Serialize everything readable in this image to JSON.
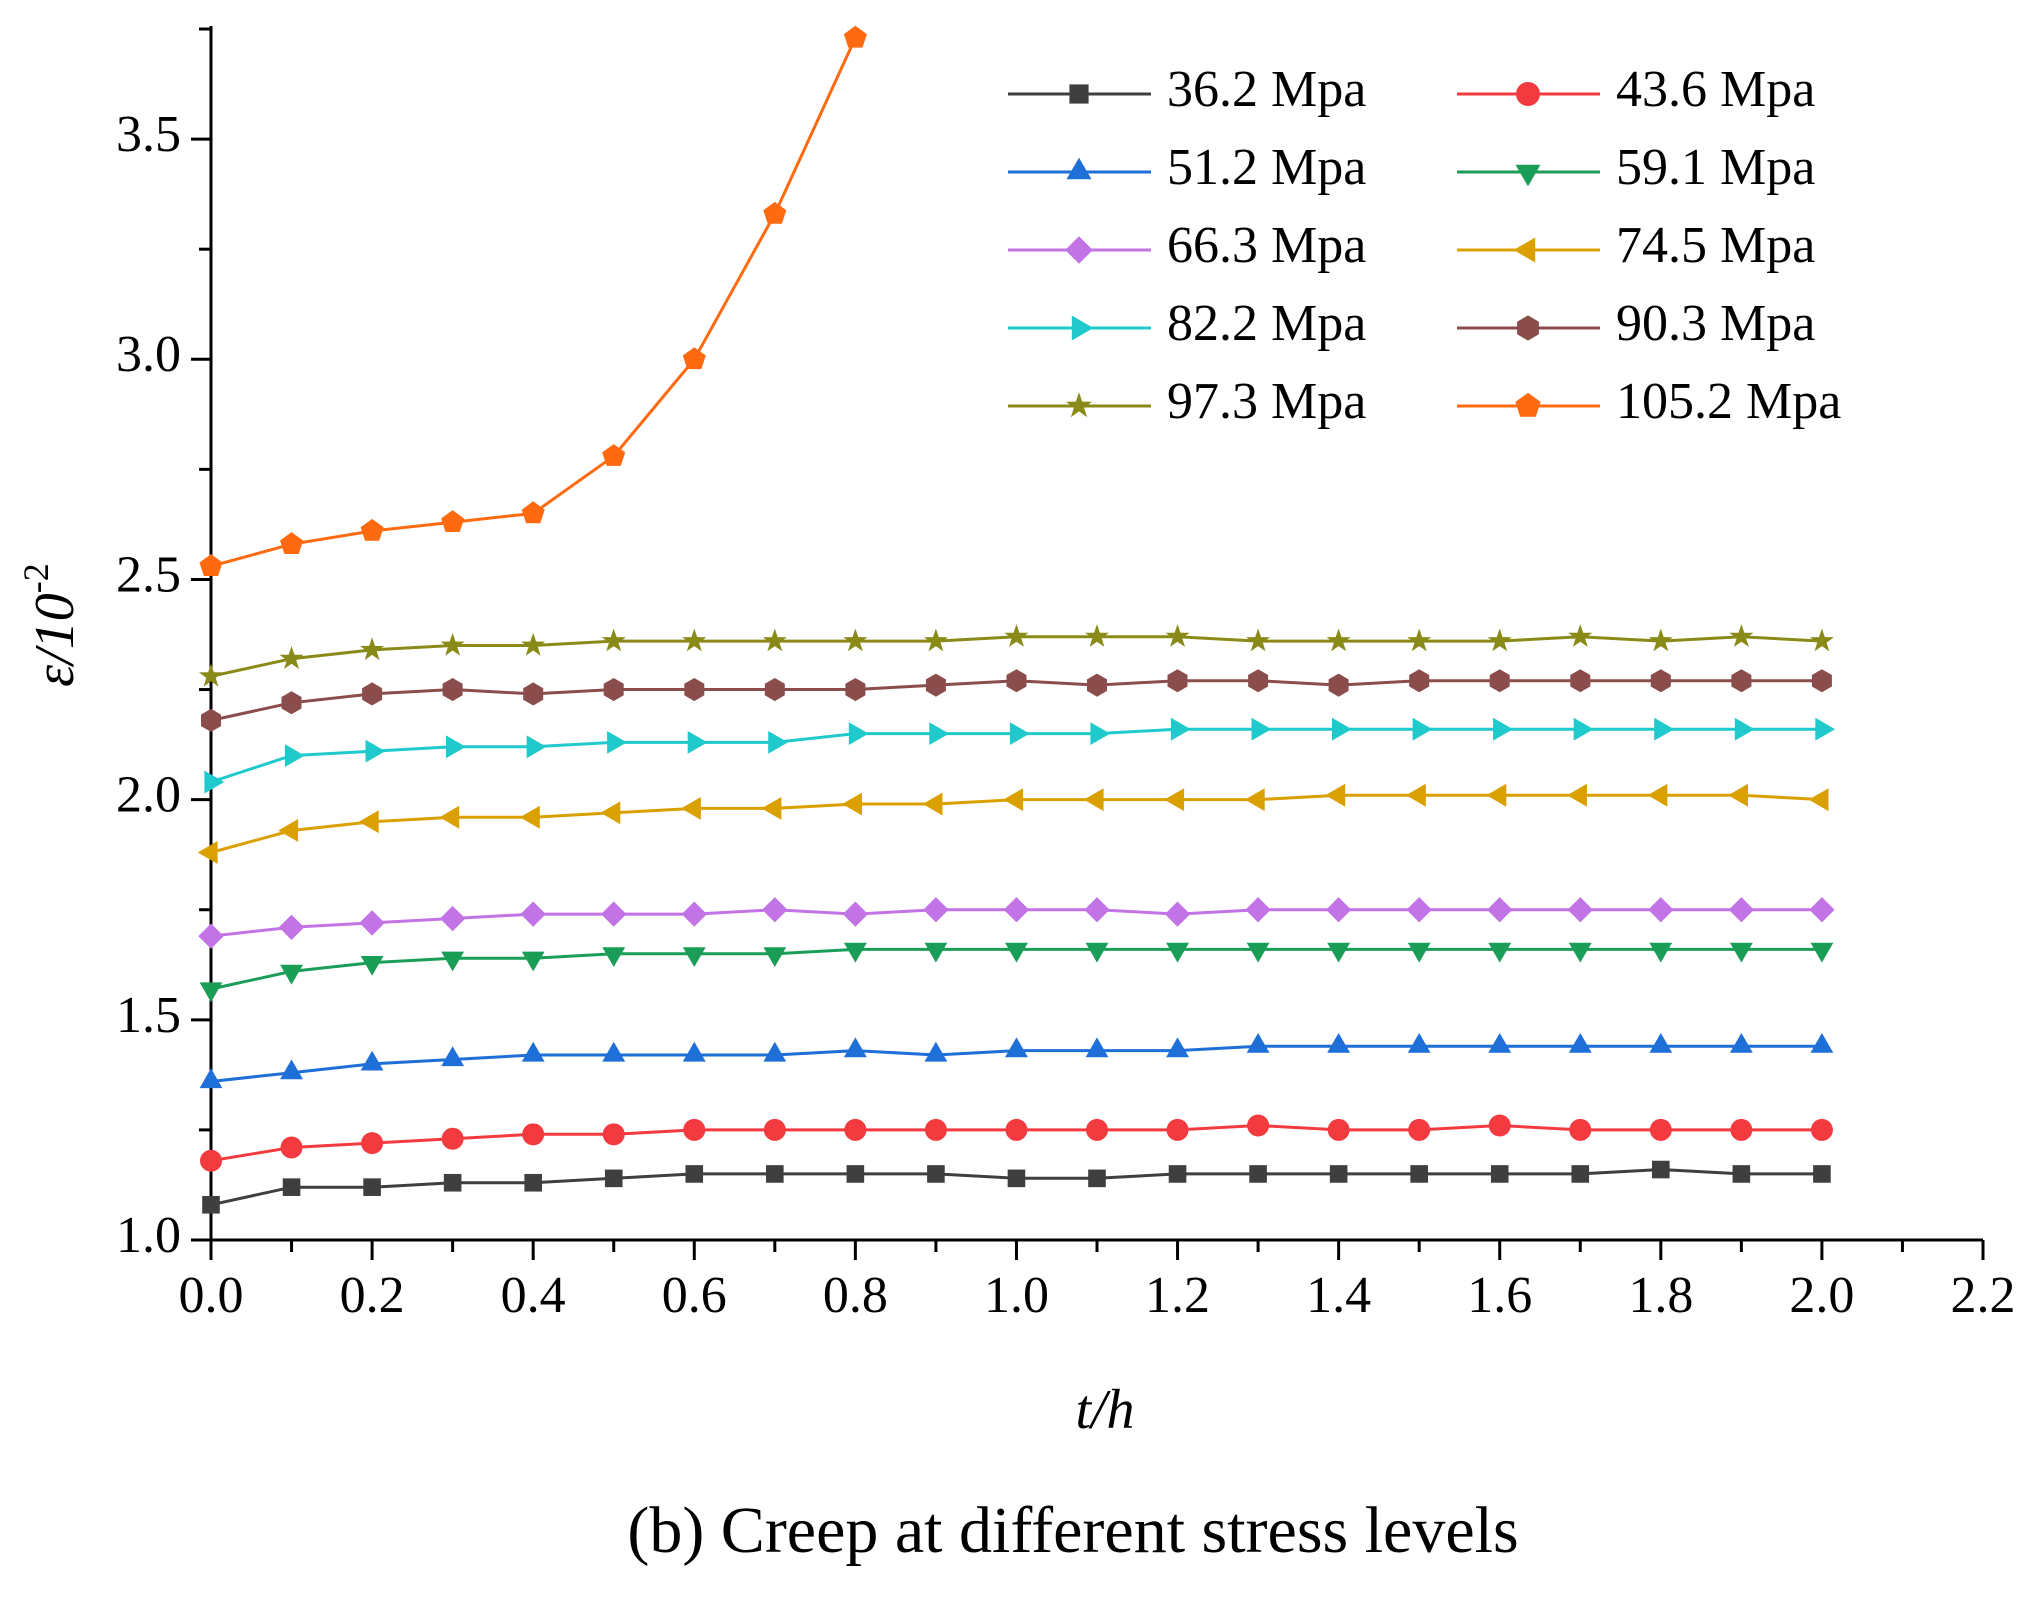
{
  "chart_data": {
    "type": "line",
    "x_label": "t/h",
    "y_label": "ε/10",
    "y_label_sup": "-2",
    "caption": "(b) Creep at different stress levels",
    "xlim": [
      0,
      2.2
    ],
    "ylim": [
      1.0,
      3.75
    ],
    "xticks": [
      {
        "value": 0,
        "label": "0.0"
      },
      0.2,
      0.4,
      0.6,
      0.8,
      {
        "value": 1,
        "label": "1.0"
      },
      1.2,
      1.4,
      1.6,
      1.8,
      {
        "value": 2,
        "label": "2.0"
      },
      2.2
    ],
    "yticks": [
      {
        "value": 1,
        "label": "1.0"
      },
      1.5,
      {
        "value": 2,
        "label": "2.0"
      },
      2.5,
      {
        "value": 3,
        "label": "3.0"
      },
      3.5
    ],
    "x": [
      0,
      0.1,
      0.2,
      0.3,
      0.4,
      0.5,
      0.6,
      0.7,
      0.8,
      0.9,
      1.0,
      1.1,
      1.2,
      1.3,
      1.4,
      1.5,
      1.6,
      1.7,
      1.8,
      1.9,
      2.0
    ],
    "series": [
      {
        "name": "36.2 Mpa",
        "color": "#3f3f3f",
        "marker": "square",
        "values": [
          1.08,
          1.12,
          1.12,
          1.13,
          1.13,
          1.14,
          1.15,
          1.15,
          1.15,
          1.15,
          1.14,
          1.14,
          1.15,
          1.15,
          1.15,
          1.15,
          1.15,
          1.15,
          1.16,
          1.15,
          1.15
        ]
      },
      {
        "name": "43.6 Mpa",
        "color": "#f23a3f",
        "marker": "circle",
        "values": [
          1.18,
          1.21,
          1.22,
          1.23,
          1.24,
          1.24,
          1.25,
          1.25,
          1.25,
          1.25,
          1.25,
          1.25,
          1.25,
          1.26,
          1.25,
          1.25,
          1.26,
          1.25,
          1.25,
          1.25,
          1.25
        ]
      },
      {
        "name": "51.2 Mpa",
        "color": "#1f6fd8",
        "marker": "triangle-up",
        "values": [
          1.36,
          1.38,
          1.4,
          1.41,
          1.42,
          1.42,
          1.42,
          1.42,
          1.43,
          1.42,
          1.43,
          1.43,
          1.43,
          1.44,
          1.44,
          1.44,
          1.44,
          1.44,
          1.44,
          1.44,
          1.44
        ]
      },
      {
        "name": "59.1 Mpa",
        "color": "#1a9e57",
        "marker": "triangle-down",
        "values": [
          1.57,
          1.61,
          1.63,
          1.64,
          1.64,
          1.65,
          1.65,
          1.65,
          1.66,
          1.66,
          1.66,
          1.66,
          1.66,
          1.66,
          1.66,
          1.66,
          1.66,
          1.66,
          1.66,
          1.66,
          1.66
        ]
      },
      {
        "name": "66.3 Mpa",
        "color": "#c273e6",
        "marker": "diamond",
        "values": [
          1.69,
          1.71,
          1.72,
          1.73,
          1.74,
          1.74,
          1.74,
          1.75,
          1.74,
          1.75,
          1.75,
          1.75,
          1.74,
          1.75,
          1.75,
          1.75,
          1.75,
          1.75,
          1.75,
          1.75,
          1.75
        ]
      },
      {
        "name": "74.5 Mpa",
        "color": "#d9a000",
        "marker": "triangle-left",
        "values": [
          1.88,
          1.93,
          1.95,
          1.96,
          1.96,
          1.97,
          1.98,
          1.98,
          1.99,
          1.99,
          2.0,
          2.0,
          2.0,
          2.0,
          2.01,
          2.01,
          2.01,
          2.01,
          2.01,
          2.01,
          2.0
        ]
      },
      {
        "name": "82.2 Mpa",
        "color": "#1fc9cc",
        "marker": "triangle-right",
        "values": [
          2.04,
          2.1,
          2.11,
          2.12,
          2.12,
          2.13,
          2.13,
          2.13,
          2.15,
          2.15,
          2.15,
          2.15,
          2.16,
          2.16,
          2.16,
          2.16,
          2.16,
          2.16,
          2.16,
          2.16,
          2.16
        ]
      },
      {
        "name": "90.3 Mpa",
        "color": "#8b4c4c",
        "marker": "hexagon",
        "values": [
          2.18,
          2.22,
          2.24,
          2.25,
          2.24,
          2.25,
          2.25,
          2.25,
          2.25,
          2.26,
          2.27,
          2.26,
          2.27,
          2.27,
          2.26,
          2.27,
          2.27,
          2.27,
          2.27,
          2.27,
          2.27
        ]
      },
      {
        "name": "97.3 Mpa",
        "color": "#8a8a18",
        "marker": "star",
        "values": [
          2.28,
          2.32,
          2.34,
          2.35,
          2.35,
          2.36,
          2.36,
          2.36,
          2.36,
          2.36,
          2.37,
          2.37,
          2.37,
          2.36,
          2.36,
          2.36,
          2.36,
          2.37,
          2.36,
          2.37,
          2.36
        ]
      },
      {
        "name": "105.2 Mpa",
        "color": "#ff6a10",
        "marker": "pentagon",
        "values": [
          2.53,
          2.58,
          2.61,
          2.63,
          2.65,
          2.78,
          3.0,
          3.33,
          3.73,
          null,
          null,
          null,
          null,
          null,
          null,
          null,
          null,
          null,
          null,
          null,
          null
        ]
      }
    ]
  }
}
